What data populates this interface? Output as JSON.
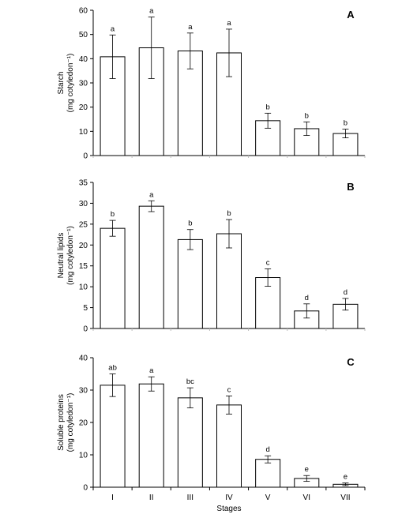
{
  "chart_data": [
    {
      "type": "bar",
      "panel_label": "A",
      "categories": [
        "I",
        "II",
        "III",
        "IV",
        "V",
        "VI",
        "VII"
      ],
      "values": [
        40.8,
        44.5,
        43.2,
        42.4,
        14.4,
        11.1,
        9.1
      ],
      "errors": [
        9.0,
        12.7,
        7.4,
        9.8,
        3.1,
        2.8,
        1.8
      ],
      "significance": [
        "a",
        "a",
        "a",
        "a",
        "b",
        "b",
        "b"
      ],
      "ylabel": "Starch",
      "ylabel_unit": "(mg cotyledon⁻¹)",
      "ylim": [
        0,
        60
      ],
      "yticks": [
        0,
        10,
        20,
        30,
        40,
        50,
        60
      ],
      "grid": false
    },
    {
      "type": "bar",
      "panel_label": "B",
      "categories": [
        "I",
        "II",
        "III",
        "IV",
        "V",
        "VI",
        "VII"
      ],
      "values": [
        24.0,
        29.3,
        21.3,
        22.7,
        12.2,
        4.2,
        5.8
      ],
      "errors": [
        1.9,
        1.3,
        2.4,
        3.4,
        2.1,
        1.7,
        1.4
      ],
      "significance": [
        "b",
        "a",
        "b",
        "b",
        "c",
        "d",
        "d"
      ],
      "ylabel": "Neutral lipids",
      "ylabel_unit": "(mg cotyledon⁻¹)",
      "ylim": [
        0,
        35
      ],
      "yticks": [
        0,
        5,
        10,
        15,
        20,
        25,
        30,
        35
      ],
      "grid": false
    },
    {
      "type": "bar",
      "panel_label": "C",
      "categories": [
        "I",
        "II",
        "III",
        "IV",
        "V",
        "VI",
        "VII"
      ],
      "values": [
        31.5,
        31.9,
        27.6,
        25.4,
        8.6,
        2.7,
        0.9
      ],
      "errors": [
        3.5,
        2.2,
        3.1,
        2.8,
        1.1,
        0.9,
        0.4
      ],
      "significance": [
        "ab",
        "a",
        "bc",
        "c",
        "d",
        "e",
        "e"
      ],
      "ylabel": "Soluble proteins",
      "ylabel_unit": "(mg cotyledon⁻¹)",
      "xlabel": "Stages",
      "ylim": [
        0,
        40
      ],
      "yticks": [
        0,
        10,
        20,
        30,
        40
      ],
      "grid": false
    }
  ]
}
